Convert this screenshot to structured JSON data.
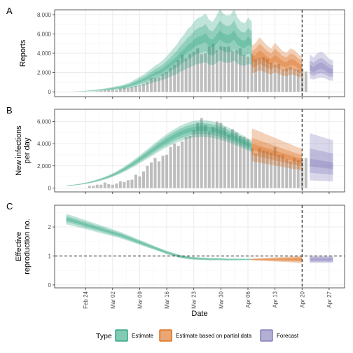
{
  "colors": {
    "estimate": "#1b9e77",
    "partial": "#d95f02",
    "forecast": "#7570b3",
    "bars": "#bdbdbd",
    "grid_major": "#ebebeb",
    "grid_minor": "#f5f5f5",
    "panel_border": "#333333"
  },
  "chart_data": {
    "type": "composite",
    "x_axis": {
      "title": "Date",
      "range": [
        "2020-02-16",
        "2020-05-01"
      ],
      "ticks": [
        "2020-02-24",
        "2020-03-02",
        "2020-03-09",
        "2020-03-16",
        "2020-03-23",
        "2020-03-30",
        "2020-04-06",
        "2020-04-13",
        "2020-04-20",
        "2020-04-27"
      ],
      "tick_labels": [
        "Feb 24",
        "Mar 02",
        "Mar 09",
        "Mar 16",
        "Mar 23",
        "Mar 30",
        "Apr 06",
        "Apr 13",
        "Apr 20",
        "Apr 27"
      ],
      "labels_rotated_deg": 90
    },
    "estimate_date": "2020-04-20",
    "legend": {
      "title": "Type",
      "position": "bottom",
      "entries": [
        {
          "key": "estimate",
          "label": "Estimate"
        },
        {
          "key": "partial",
          "label": "Estimate based on partial data"
        },
        {
          "key": "forecast",
          "label": "Forecast"
        }
      ]
    },
    "panels": [
      {
        "id": "A",
        "label": "A",
        "ylabel": [
          "Reports"
        ],
        "ylim": [
          -500,
          8500
        ],
        "yticks": [
          0,
          2000,
          4000,
          6000,
          8000
        ],
        "ytick_labels": [
          "0",
          "2,000",
          "4,000",
          "6,000",
          "8,000"
        ],
        "bar_x_start": "2020-02-25",
        "bars": [
          10,
          30,
          60,
          100,
          150,
          200,
          250,
          200,
          350,
          450,
          420,
          500,
          600,
          650,
          800,
          1000,
          1400,
          1450,
          1500,
          1850,
          2050,
          2500,
          2800,
          3300,
          3850,
          3450,
          3900,
          4150,
          4500,
          3900,
          4000,
          4700,
          4950,
          4300,
          4700,
          4650,
          4700,
          4250,
          4300,
          4500,
          3800,
          3650,
          3900,
          3400,
          3500,
          3600,
          3400,
          3000,
          2800,
          2900,
          2300,
          2450,
          2600,
          2350,
          2300,
          2400,
          2100
        ],
        "series": [
          {
            "type": "estimate",
            "x_start": "2020-02-20",
            "x_end": "2020-04-07",
            "median": [
              0,
              10,
              25,
              45,
              60,
              90,
              120,
              150,
              180,
              210,
              250,
              300,
              350,
              400,
              450,
              520,
              600,
              700,
              850,
              1000,
              1150,
              1300,
              1500,
              1700,
              1900,
              2050,
              2250,
              2500,
              2800,
              3100,
              3400,
              3800,
              4100,
              4500,
              4700,
              5100,
              5300,
              5400,
              5600,
              5150,
              5000,
              5400,
              5900,
              5600,
              5450,
              5500,
              5900,
              5300,
              5000,
              4900,
              5300,
              5000
            ],
            "bands": [
              [
                0.92,
                1.08
              ],
              [
                0.75,
                1.25
              ],
              [
                0.55,
                1.45
              ]
            ]
          },
          {
            "type": "partial",
            "x_start": "2020-04-07",
            "x_end": "2020-04-20",
            "median": [
              3300,
              3500,
              3900,
              3600,
              3300,
              3100,
              3500,
              3200,
              2900,
              2800,
              3100,
              3000,
              2700,
              2500
            ],
            "bands": [
              [
                0.9,
                1.1
              ],
              [
                0.75,
                1.28
              ],
              [
                0.58,
                1.45
              ]
            ]
          },
          {
            "type": "forecast",
            "x_start": "2020-04-22",
            "x_end": "2020-04-28",
            "median": [
              2500,
              2300,
              2600,
              2700,
              2500,
              2200,
              2100
            ],
            "bands": [
              [
                0.88,
                1.12
              ],
              [
                0.72,
                1.3
              ],
              [
                0.55,
                1.55
              ]
            ]
          }
        ]
      },
      {
        "id": "B",
        "label": "B",
        "ylabel": [
          "New infections",
          "per day"
        ],
        "ylim": [
          -350,
          7100
        ],
        "yticks": [
          0,
          2000,
          4000,
          6000
        ],
        "ytick_labels": [
          "0",
          "2,000",
          "4,000",
          "6,000"
        ],
        "bar_x_start": "2020-02-25",
        "bars": [
          200,
          200,
          300,
          300,
          500,
          350,
          300,
          400,
          600,
          550,
          700,
          750,
          1200,
          1050,
          1500,
          2000,
          2300,
          2700,
          2400,
          2900,
          3000,
          3700,
          4000,
          3800,
          4200,
          4600,
          4700,
          5200,
          5900,
          6300,
          5700,
          5100,
          5500,
          6000,
          5900,
          5500,
          4800,
          5300,
          5000,
          4700,
          4600,
          4400,
          3600,
          3100,
          3600,
          3400,
          3300,
          3200,
          3700,
          3000,
          3000,
          2600,
          2400,
          2700,
          2500,
          2500,
          2700
        ],
        "series": [
          {
            "type": "estimate",
            "x_start": "2020-02-19",
            "x_end": "2020-04-07",
            "median": [
              200,
              230,
              270,
              310,
              360,
              420,
              490,
              570,
              660,
              760,
              870,
              990,
              1130,
              1280,
              1450,
              1630,
              1830,
              2040,
              2260,
              2490,
              2730,
              2970,
              3210,
              3460,
              3700,
              3930,
              4150,
              4360,
              4560,
              4740,
              4900,
              5040,
              5160,
              5250,
              5320,
              5350,
              5360,
              5340,
              5300,
              5230,
              5140,
              5030,
              4900,
              4760,
              4600,
              4440,
              4270,
              4100,
              3930,
              3760
            ],
            "bands": [
              [
                0.96,
                1.04
              ],
              [
                0.91,
                1.09
              ],
              [
                0.86,
                1.14
              ]
            ]
          },
          {
            "type": "partial",
            "x_start": "2020-04-07",
            "x_end": "2020-04-20",
            "median": [
              3700,
              3620,
              3520,
              3420,
              3320,
              3220,
              3120,
              3020,
              2920,
              2820,
              2720,
              2620,
              2520,
              2450
            ],
            "bands": [
              [
                0.92,
                1.08
              ],
              [
                0.8,
                1.22
              ],
              [
                0.65,
                1.45
              ]
            ]
          },
          {
            "type": "forecast",
            "x_start": "2020-04-22",
            "x_end": "2020-04-28",
            "median": [
              2300,
              2250,
              2200,
              2150,
              2100,
              2050,
              2000
            ],
            "bands": [
              [
                0.85,
                1.15
              ],
              [
                0.6,
                1.55
              ],
              [
                0.3,
                2.15
              ]
            ]
          }
        ]
      },
      {
        "id": "C",
        "label": "C",
        "ylabel": [
          "Effective",
          "reproduction no."
        ],
        "ylim": [
          -0.1,
          2.75
        ],
        "yticks": [
          0,
          1,
          2
        ],
        "ytick_labels": [
          "0",
          "1",
          "2"
        ],
        "hline": 1,
        "bars": [],
        "series": [
          {
            "type": "estimate",
            "x_start": "2020-02-19",
            "x_end": "2020-04-07",
            "median": [
              2.27,
              2.24,
              2.2,
              2.16,
              2.12,
              2.08,
              2.04,
              2.0,
              1.96,
              1.92,
              1.88,
              1.84,
              1.8,
              1.76,
              1.72,
              1.67,
              1.62,
              1.57,
              1.52,
              1.47,
              1.42,
              1.37,
              1.32,
              1.27,
              1.22,
              1.17,
              1.12,
              1.08,
              1.04,
              1.0,
              0.97,
              0.95,
              0.93,
              0.92,
              0.91,
              0.9,
              0.9,
              0.89,
              0.89,
              0.89,
              0.89,
              0.88,
              0.88,
              0.88,
              0.88,
              0.88,
              0.88,
              0.88,
              0.88
            ],
            "band_halfwidth": [
              [
                0.04,
                0.1,
                0.18
              ],
              [
                0.02,
                0.05,
                0.06
              ],
              [
                0.005,
                0.015,
                0.025
              ]
            ]
          },
          {
            "type": "partial",
            "x_start": "2020-04-07",
            "x_end": "2020-04-20",
            "median": [
              0.88,
              0.88,
              0.88,
              0.88,
              0.88,
              0.88,
              0.88,
              0.88,
              0.88,
              0.88,
              0.88,
              0.88,
              0.88,
              0.88
            ],
            "band_halfwidth": [
              [
                0.01,
                0.02,
                0.03
              ],
              [
                0.04,
                0.08,
                0.12
              ]
            ]
          },
          {
            "type": "forecast",
            "x_start": "2020-04-22",
            "x_end": "2020-04-28",
            "median": [
              0.88,
              0.88,
              0.88,
              0.88,
              0.88,
              0.88,
              0.88
            ],
            "band_halfwidth": [
              [
                0.04,
                0.08,
                0.12
              ],
              [
                0.04,
                0.08,
                0.12
              ]
            ]
          }
        ]
      }
    ]
  }
}
